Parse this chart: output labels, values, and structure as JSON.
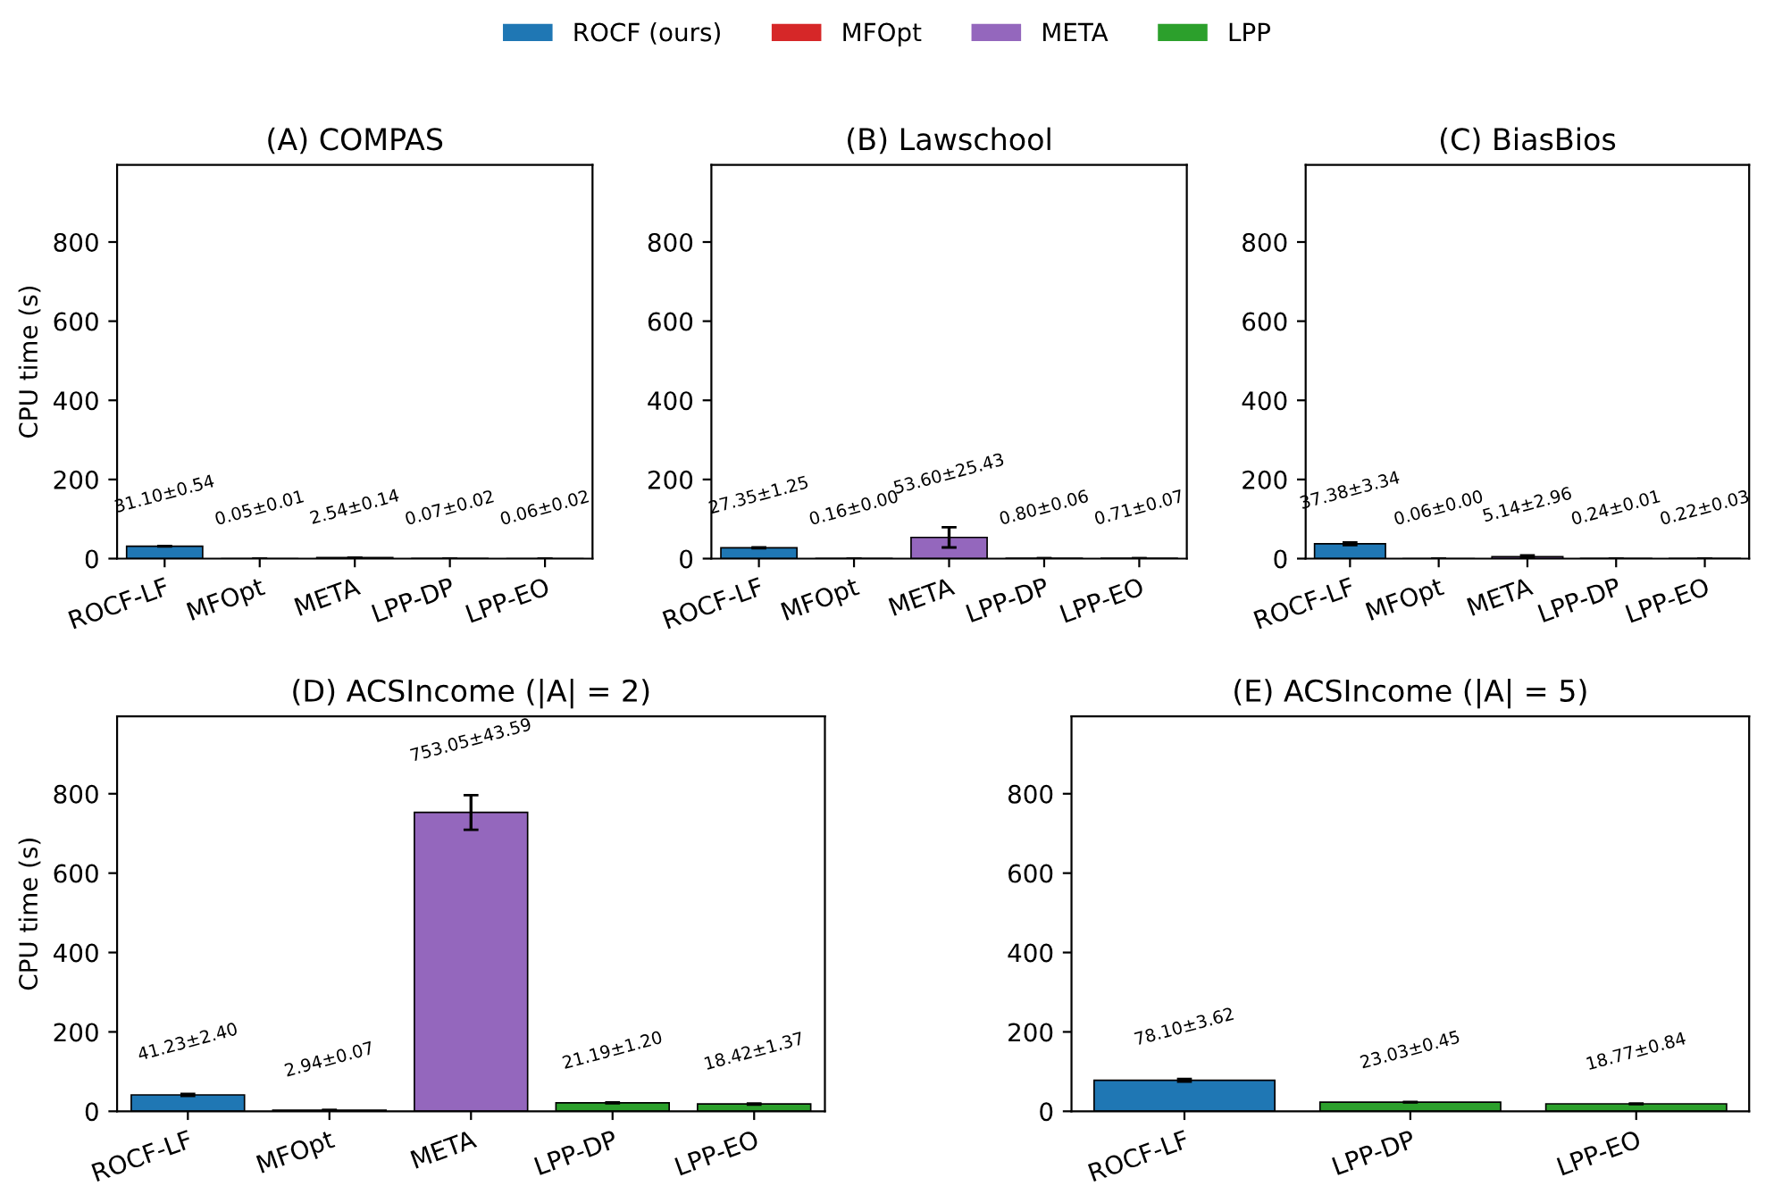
{
  "chart_data": [
    {
      "type": "bar",
      "title": "(A) COMPAS",
      "ylabel": "CPU time (s)",
      "categories": [
        "ROCF-LF",
        "MFOpt",
        "META",
        "LPP-DP",
        "LPP-EO"
      ],
      "ylim": [
        0,
        995
      ],
      "yticks": [
        0,
        200,
        400,
        600,
        800
      ],
      "legend": "top",
      "grid": false,
      "series": [
        {
          "name": "ROCF (ours)",
          "color": "#1f77b4",
          "values": [
            31.1,
            null,
            null,
            null,
            null
          ],
          "errors": [
            0.54,
            null,
            null,
            null,
            null
          ],
          "value_labels": [
            "31.10±0.54",
            null,
            null,
            null,
            null
          ]
        },
        {
          "name": "MFOpt",
          "color": "#d62728",
          "values": [
            null,
            0.05,
            null,
            null,
            null
          ],
          "errors": [
            null,
            0.01,
            null,
            null,
            null
          ],
          "value_labels": [
            null,
            "0.05±0.01",
            null,
            null,
            null
          ]
        },
        {
          "name": "META",
          "color": "#9467bd",
          "values": [
            null,
            null,
            2.54,
            null,
            null
          ],
          "errors": [
            null,
            null,
            0.14,
            null,
            null
          ],
          "value_labels": [
            null,
            null,
            "2.54±0.14",
            null,
            null
          ]
        },
        {
          "name": "LPP",
          "color": "#2ca02c",
          "values": [
            null,
            null,
            null,
            0.07,
            0.06
          ],
          "errors": [
            null,
            null,
            null,
            0.02,
            0.02
          ],
          "value_labels": [
            null,
            null,
            null,
            "0.07±0.02",
            "0.06±0.02"
          ]
        }
      ]
    },
    {
      "type": "bar",
      "title": "(B) Lawschool",
      "categories": [
        "ROCF-LF",
        "MFOpt",
        "META",
        "LPP-DP",
        "LPP-EO"
      ],
      "ylim": [
        0,
        995
      ],
      "yticks": [
        0,
        200,
        400,
        600,
        800
      ],
      "grid": false,
      "series": [
        {
          "color": "#1f77b4",
          "values": [
            27.35,
            null,
            null,
            null,
            null
          ],
          "errors": [
            1.25,
            null,
            null,
            null,
            null
          ],
          "value_labels": [
            "27.35±1.25",
            null,
            null,
            null,
            null
          ]
        },
        {
          "color": "#d62728",
          "values": [
            null,
            0.16,
            null,
            null,
            null
          ],
          "errors": [
            null,
            0.0,
            null,
            null,
            null
          ],
          "value_labels": [
            null,
            "0.16±0.00",
            null,
            null,
            null
          ]
        },
        {
          "color": "#9467bd",
          "values": [
            null,
            null,
            53.6,
            null,
            null
          ],
          "errors": [
            null,
            null,
            25.43,
            null,
            null
          ],
          "value_labels": [
            null,
            null,
            "53.60±25.43",
            null,
            null
          ]
        },
        {
          "color": "#2ca02c",
          "values": [
            null,
            null,
            null,
            0.8,
            0.71
          ],
          "errors": [
            null,
            null,
            null,
            0.06,
            0.07
          ],
          "value_labels": [
            null,
            null,
            null,
            "0.80±0.06",
            "0.71±0.07"
          ]
        }
      ]
    },
    {
      "type": "bar",
      "title": "(C) BiasBios",
      "categories": [
        "ROCF-LF",
        "MFOpt",
        "META",
        "LPP-DP",
        "LPP-EO"
      ],
      "ylim": [
        0,
        995
      ],
      "yticks": [
        0,
        200,
        400,
        600,
        800
      ],
      "grid": false,
      "series": [
        {
          "color": "#1f77b4",
          "values": [
            37.38,
            null,
            null,
            null,
            null
          ],
          "errors": [
            3.34,
            null,
            null,
            null,
            null
          ],
          "value_labels": [
            "37.38±3.34",
            null,
            null,
            null,
            null
          ]
        },
        {
          "color": "#d62728",
          "values": [
            null,
            0.06,
            null,
            null,
            null
          ],
          "errors": [
            null,
            0.0,
            null,
            null,
            null
          ],
          "value_labels": [
            null,
            "0.06±0.00",
            null,
            null,
            null
          ]
        },
        {
          "color": "#9467bd",
          "values": [
            null,
            null,
            5.14,
            null,
            null
          ],
          "errors": [
            null,
            null,
            2.96,
            null,
            null
          ],
          "value_labels": [
            null,
            null,
            "5.14±2.96",
            null,
            null
          ]
        },
        {
          "color": "#2ca02c",
          "values": [
            null,
            null,
            null,
            0.24,
            0.22
          ],
          "errors": [
            null,
            null,
            null,
            0.01,
            0.03
          ],
          "value_labels": [
            null,
            null,
            null,
            "0.24±0.01",
            "0.22±0.03"
          ]
        }
      ]
    },
    {
      "type": "bar",
      "title": "(D) ACSIncome (|A| = 2)",
      "ylabel": "CPU time (s)",
      "categories": [
        "ROCF-LF",
        "MFOpt",
        "META",
        "LPP-DP",
        "LPP-EO"
      ],
      "ylim": [
        0,
        995
      ],
      "yticks": [
        0,
        200,
        400,
        600,
        800
      ],
      "grid": false,
      "series": [
        {
          "color": "#1f77b4",
          "values": [
            41.23,
            null,
            null,
            null,
            null
          ],
          "errors": [
            2.4,
            null,
            null,
            null,
            null
          ],
          "value_labels": [
            "41.23±2.40",
            null,
            null,
            null,
            null
          ]
        },
        {
          "color": "#d62728",
          "values": [
            null,
            2.94,
            null,
            null,
            null
          ],
          "errors": [
            null,
            0.07,
            null,
            null,
            null
          ],
          "value_labels": [
            null,
            "2.94±0.07",
            null,
            null,
            null
          ]
        },
        {
          "color": "#9467bd",
          "values": [
            null,
            null,
            753.05,
            null,
            null
          ],
          "errors": [
            null,
            null,
            43.59,
            null,
            null
          ],
          "value_labels": [
            null,
            null,
            "753.05±43.59",
            null,
            null
          ]
        },
        {
          "color": "#2ca02c",
          "values": [
            null,
            null,
            null,
            21.19,
            18.42
          ],
          "errors": [
            null,
            null,
            null,
            1.2,
            1.37
          ],
          "value_labels": [
            null,
            null,
            null,
            "21.19±1.20",
            "18.42±1.37"
          ]
        }
      ]
    },
    {
      "type": "bar",
      "title": "(E) ACSIncome (|A| = 5)",
      "categories": [
        "ROCF-LF",
        "LPP-DP",
        "LPP-EO"
      ],
      "ylim": [
        0,
        995
      ],
      "yticks": [
        0,
        200,
        400,
        600,
        800
      ],
      "grid": false,
      "series": [
        {
          "color": "#1f77b4",
          "values": [
            78.1,
            null,
            null
          ],
          "errors": [
            3.62,
            null,
            null
          ],
          "value_labels": [
            "78.10±3.62",
            null,
            null
          ]
        },
        {
          "color": "#2ca02c",
          "values": [
            null,
            23.03,
            18.77
          ],
          "errors": [
            null,
            0.45,
            0.84
          ],
          "value_labels": [
            null,
            "23.03±0.45",
            "18.77±0.84"
          ]
        }
      ]
    }
  ]
}
